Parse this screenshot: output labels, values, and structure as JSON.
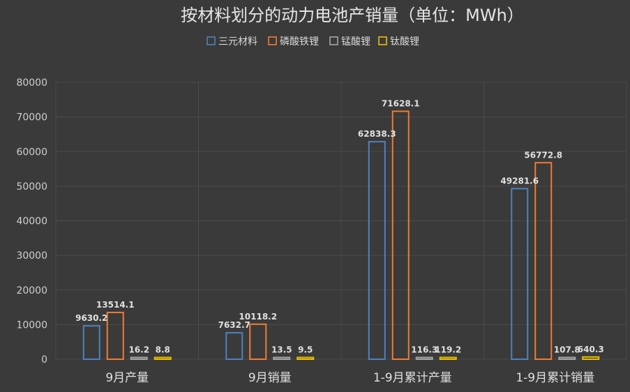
{
  "chart_data": {
    "type": "bar",
    "title": "按材料划分的动力电池产销量（单位：MWh）",
    "categories": [
      "9月产量",
      "9月销量",
      "1-9月累计产量",
      "1-9月累计销量"
    ],
    "series": [
      {
        "name": "三元材料",
        "color": "#4f81bd",
        "values": [
          9630.2,
          7632.7,
          62838.3,
          49281.6
        ]
      },
      {
        "name": "磷酸铁锂",
        "color": "#f07c32",
        "values": [
          13514.1,
          10118.2,
          71628.1,
          56772.8
        ]
      },
      {
        "name": "锰酸锂",
        "color": "#a5a5a5",
        "values": [
          16.2,
          13.5,
          116.3,
          107.8
        ]
      },
      {
        "name": "钛酸锂",
        "color": "#e8c000",
        "values": [
          8.8,
          9.5,
          119.2,
          640.3
        ]
      }
    ],
    "ylim": [
      0,
      80000
    ],
    "yticks": [
      0,
      10000,
      20000,
      30000,
      40000,
      50000,
      60000,
      70000,
      80000
    ],
    "legend_position": "top",
    "grid": true
  }
}
